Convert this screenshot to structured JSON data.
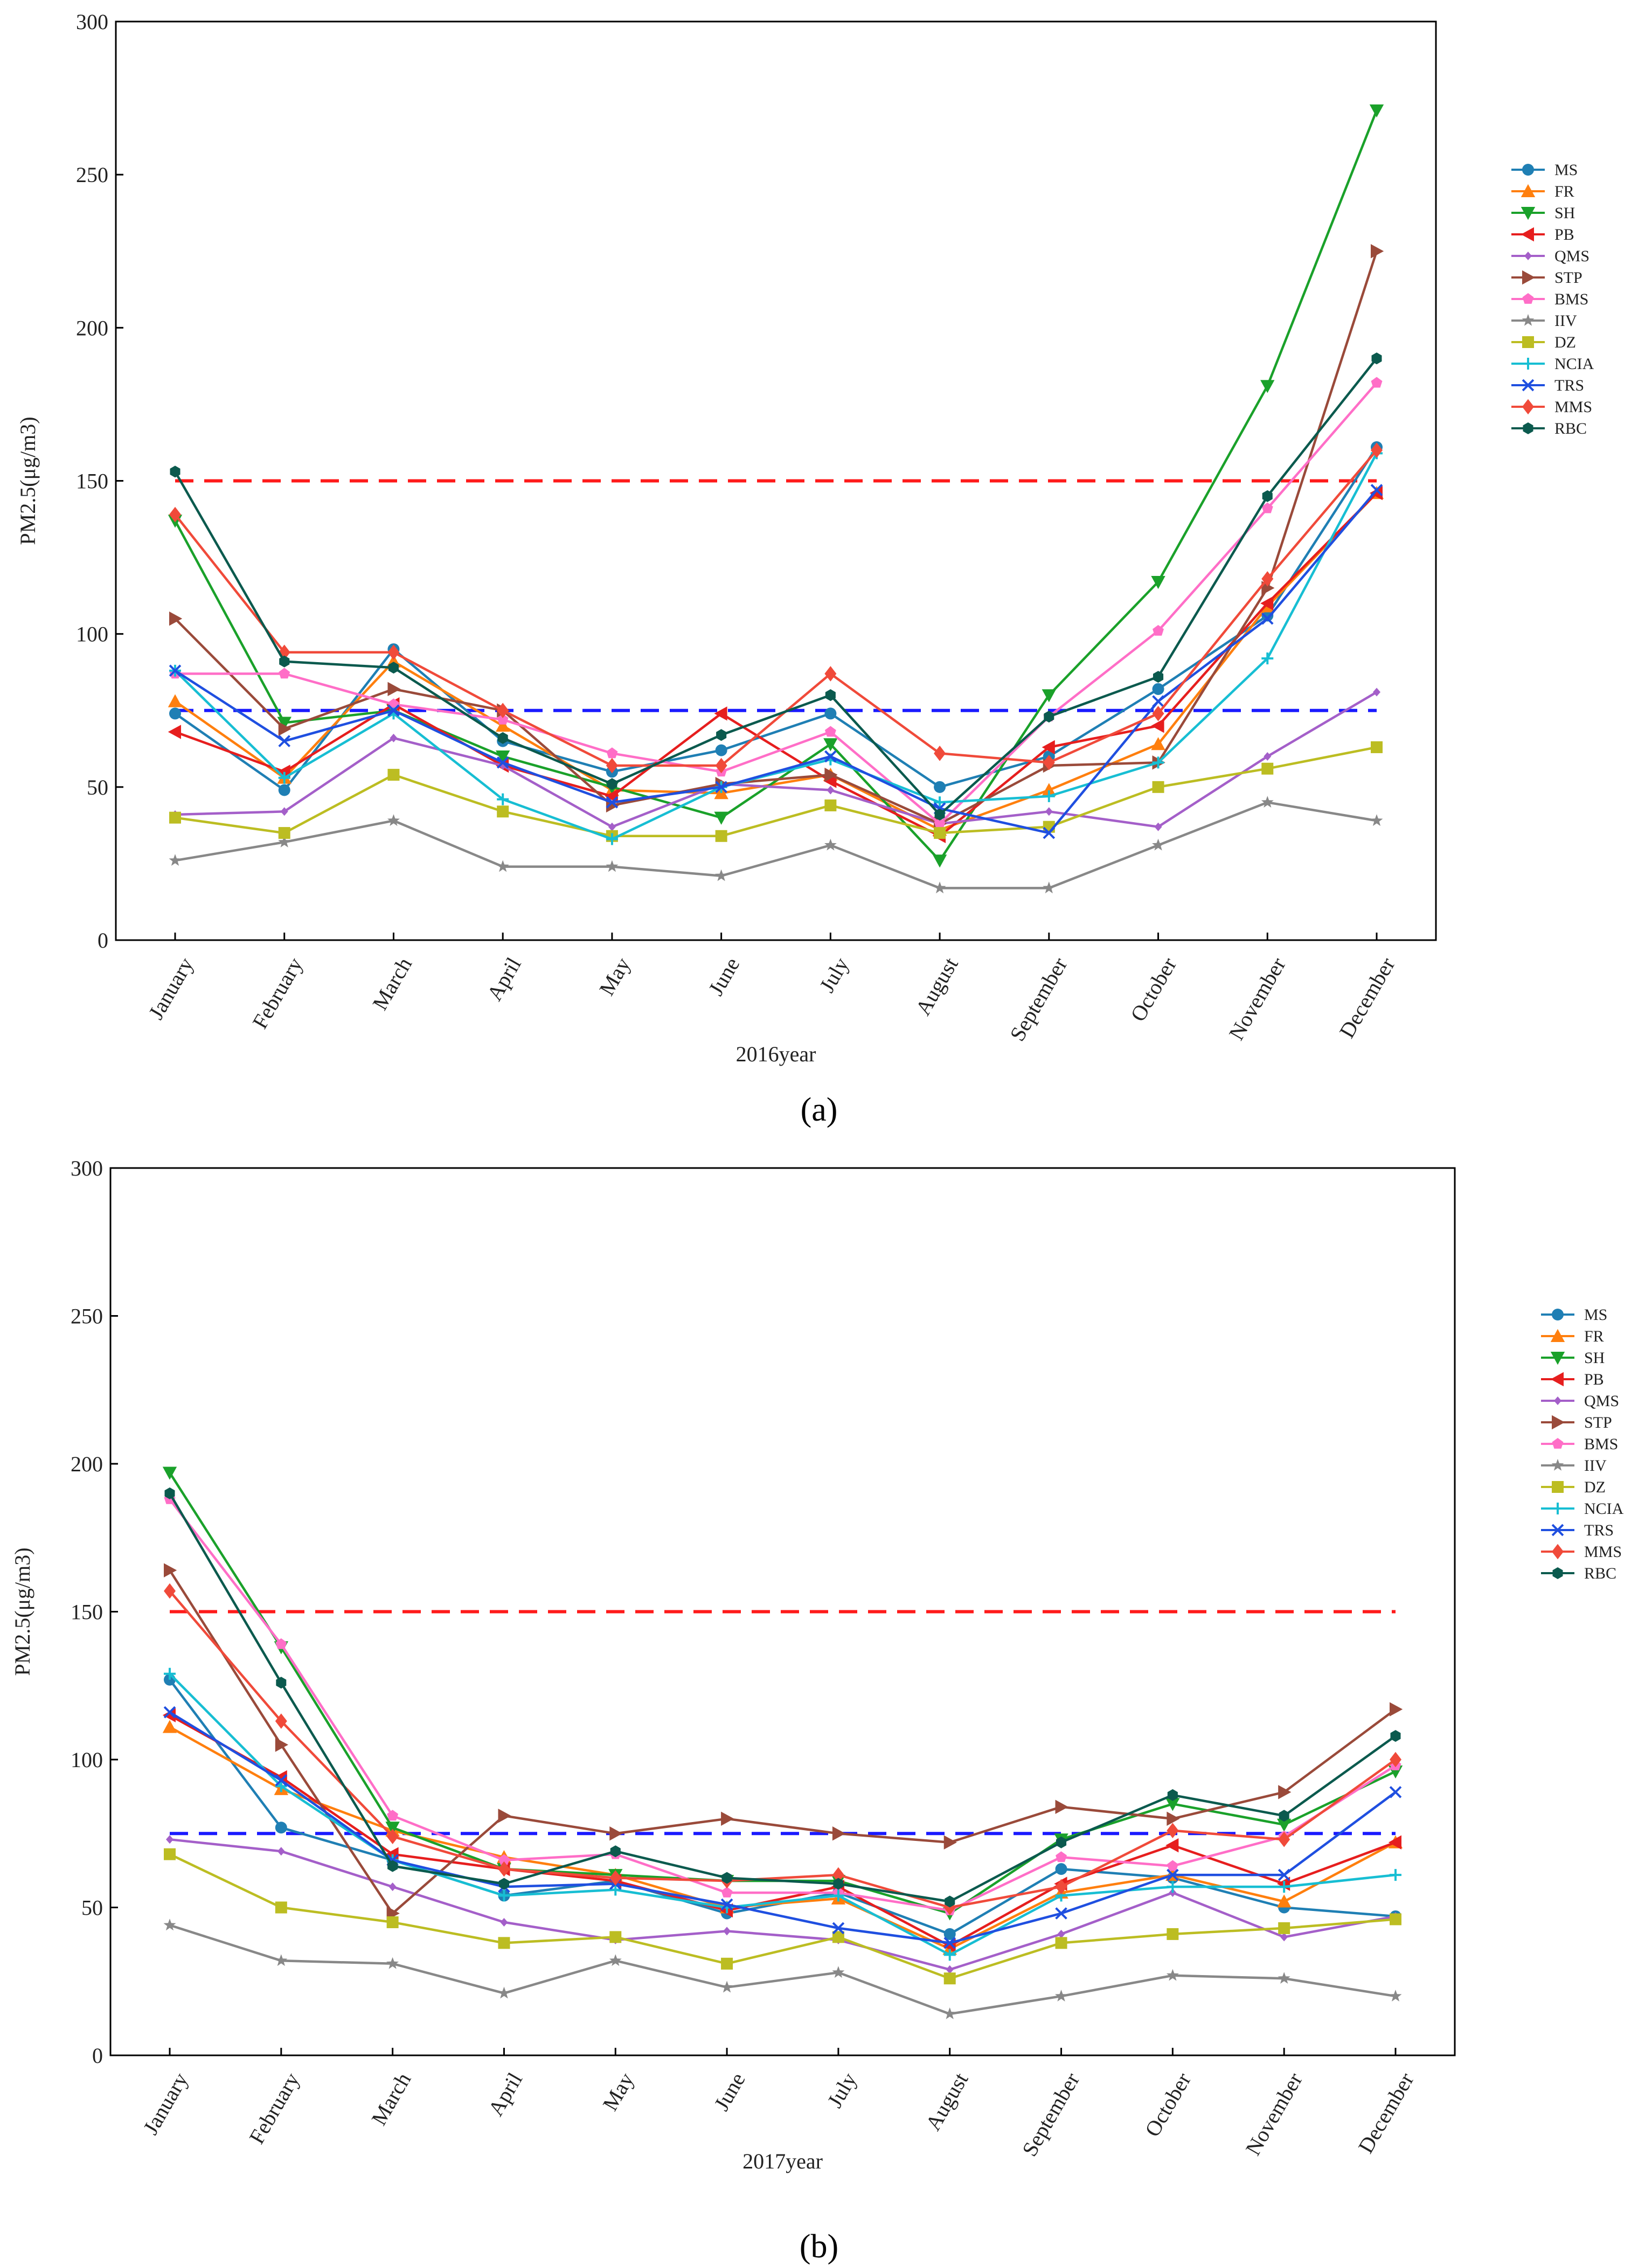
{
  "chart_data": [
    {
      "type": "line",
      "panel_label": "(a)",
      "xlabel": "2016year",
      "ylabel": "PM2.5(μg/m3)",
      "ylim": [
        0,
        300
      ],
      "yticks": [
        0,
        50,
        100,
        150,
        200,
        250,
        300
      ],
      "categories": [
        "January",
        "February",
        "March",
        "April",
        "May",
        "June",
        "July",
        "August",
        "September",
        "October",
        "November",
        "December"
      ],
      "reference_lines": [
        {
          "value": 150,
          "color": "#ff1a1a",
          "style": "dashed"
        },
        {
          "value": 75,
          "color": "#1a1aff",
          "style": "dashed"
        }
      ],
      "legend_position": "right",
      "series": [
        {
          "name": "MS",
          "color": "#1f7fb4",
          "marker": "circle",
          "values": [
            74,
            49,
            95,
            65,
            55,
            62,
            74,
            50,
            60,
            82,
            106,
            161
          ]
        },
        {
          "name": "FR",
          "color": "#ff7f0e",
          "marker": "triangle-up",
          "values": [
            78,
            53,
            91,
            70,
            49,
            48,
            54,
            36,
            49,
            64,
            109,
            146
          ]
        },
        {
          "name": "SH",
          "color": "#1aa12a",
          "marker": "triangle-down",
          "values": [
            137,
            71,
            75,
            60,
            50,
            40,
            64,
            26,
            80,
            117,
            181,
            271
          ]
        },
        {
          "name": "PB",
          "color": "#e61e1e",
          "marker": "triangle-left",
          "values": [
            68,
            55,
            77,
            57,
            47,
            74,
            52,
            34,
            63,
            70,
            110,
            146
          ]
        },
        {
          "name": "QMS",
          "color": "#a45fc9",
          "marker": "diamond-small",
          "values": [
            41,
            42,
            66,
            57,
            37,
            51,
            49,
            38,
            42,
            37,
            60,
            81
          ]
        },
        {
          "name": "STP",
          "color": "#9a4a3a",
          "marker": "triangle-right",
          "values": [
            105,
            69,
            82,
            75,
            44,
            51,
            54,
            38,
            57,
            58,
            115,
            225
          ]
        },
        {
          "name": "BMS",
          "color": "#ff6ec7",
          "marker": "pentagon",
          "values": [
            87,
            87,
            77,
            72,
            61,
            55,
            68,
            38,
            73,
            101,
            141,
            182
          ]
        },
        {
          "name": "IIV",
          "color": "#888888",
          "marker": "star",
          "values": [
            26,
            32,
            39,
            24,
            24,
            21,
            31,
            17,
            17,
            31,
            45,
            39
          ]
        },
        {
          "name": "DZ",
          "color": "#bcbd22",
          "marker": "square",
          "values": [
            40,
            35,
            54,
            42,
            34,
            34,
            44,
            35,
            37,
            50,
            56,
            63
          ]
        },
        {
          "name": "NCIA",
          "color": "#17bed3",
          "marker": "plus",
          "values": [
            88,
            53,
            74,
            46,
            33,
            50,
            59,
            45,
            47,
            58,
            92,
            159
          ]
        },
        {
          "name": "TRS",
          "color": "#1f4fe0",
          "marker": "x",
          "values": [
            88,
            65,
            75,
            58,
            45,
            50,
            60,
            43,
            35,
            78,
            105,
            147
          ]
        },
        {
          "name": "MMS",
          "color": "#f04a3a",
          "marker": "diamond",
          "values": [
            139,
            94,
            94,
            75,
            57,
            57,
            87,
            61,
            58,
            74,
            118,
            160
          ]
        },
        {
          "name": "RBC",
          "color": "#0b5a4e",
          "marker": "hexagon",
          "values": [
            153,
            91,
            89,
            66,
            51,
            67,
            80,
            41,
            73,
            86,
            145,
            190
          ]
        }
      ]
    },
    {
      "type": "line",
      "panel_label": "(b)",
      "xlabel": "2017year",
      "ylabel": "PM2.5(μg/m3)",
      "ylim": [
        0,
        300
      ],
      "yticks": [
        0,
        50,
        100,
        150,
        200,
        250,
        300
      ],
      "categories": [
        "January",
        "February",
        "March",
        "April",
        "May",
        "June",
        "July",
        "August",
        "September",
        "October",
        "November",
        "December"
      ],
      "reference_lines": [
        {
          "value": 150,
          "color": "#ff1a1a",
          "style": "dashed"
        },
        {
          "value": 75,
          "color": "#1a1aff",
          "style": "dashed"
        }
      ],
      "legend_position": "right",
      "series": [
        {
          "name": "MS",
          "color": "#1f7fb4",
          "marker": "circle",
          "values": [
            127,
            77,
            66,
            54,
            59,
            48,
            55,
            41,
            63,
            60,
            50,
            47
          ]
        },
        {
          "name": "FR",
          "color": "#ff7f0e",
          "marker": "triangle-up",
          "values": [
            111,
            90,
            76,
            67,
            61,
            50,
            53,
            36,
            55,
            61,
            52,
            72
          ]
        },
        {
          "name": "SH",
          "color": "#1aa12a",
          "marker": "triangle-down",
          "values": [
            197,
            138,
            77,
            63,
            61,
            59,
            59,
            48,
            73,
            85,
            78,
            96
          ]
        },
        {
          "name": "PB",
          "color": "#e61e1e",
          "marker": "triangle-left",
          "values": [
            115,
            94,
            68,
            63,
            59,
            49,
            57,
            37,
            58,
            71,
            58,
            72
          ]
        },
        {
          "name": "QMS",
          "color": "#a45fc9",
          "marker": "diamond-small",
          "values": [
            73,
            69,
            57,
            45,
            39,
            42,
            39,
            29,
            41,
            55,
            40,
            47
          ]
        },
        {
          "name": "STP",
          "color": "#9a4a3a",
          "marker": "triangle-right",
          "values": [
            164,
            105,
            48,
            81,
            75,
            80,
            75,
            72,
            84,
            80,
            89,
            117
          ]
        },
        {
          "name": "BMS",
          "color": "#ff6ec7",
          "marker": "pentagon",
          "values": [
            188,
            139,
            81,
            66,
            68,
            55,
            55,
            49,
            67,
            64,
            74,
            98
          ]
        },
        {
          "name": "IIV",
          "color": "#888888",
          "marker": "star",
          "values": [
            44,
            32,
            31,
            21,
            32,
            23,
            28,
            14,
            20,
            27,
            26,
            20
          ]
        },
        {
          "name": "DZ",
          "color": "#bcbd22",
          "marker": "square",
          "values": [
            68,
            50,
            45,
            38,
            40,
            31,
            40,
            26,
            38,
            41,
            43,
            46
          ]
        },
        {
          "name": "NCIA",
          "color": "#17bed3",
          "marker": "plus",
          "values": [
            129,
            91,
            66,
            54,
            56,
            50,
            54,
            34,
            54,
            57,
            57,
            61
          ]
        },
        {
          "name": "TRS",
          "color": "#1f4fe0",
          "marker": "x",
          "values": [
            116,
            93,
            66,
            57,
            58,
            51,
            43,
            38,
            48,
            61,
            61,
            89
          ]
        },
        {
          "name": "MMS",
          "color": "#f04a3a",
          "marker": "diamond",
          "values": [
            157,
            113,
            74,
            63,
            60,
            59,
            61,
            50,
            57,
            76,
            73,
            100
          ]
        },
        {
          "name": "RBC",
          "color": "#0b5a4e",
          "marker": "hexagon",
          "values": [
            190,
            126,
            64,
            58,
            69,
            60,
            58,
            52,
            72,
            88,
            81,
            108
          ]
        }
      ]
    }
  ]
}
